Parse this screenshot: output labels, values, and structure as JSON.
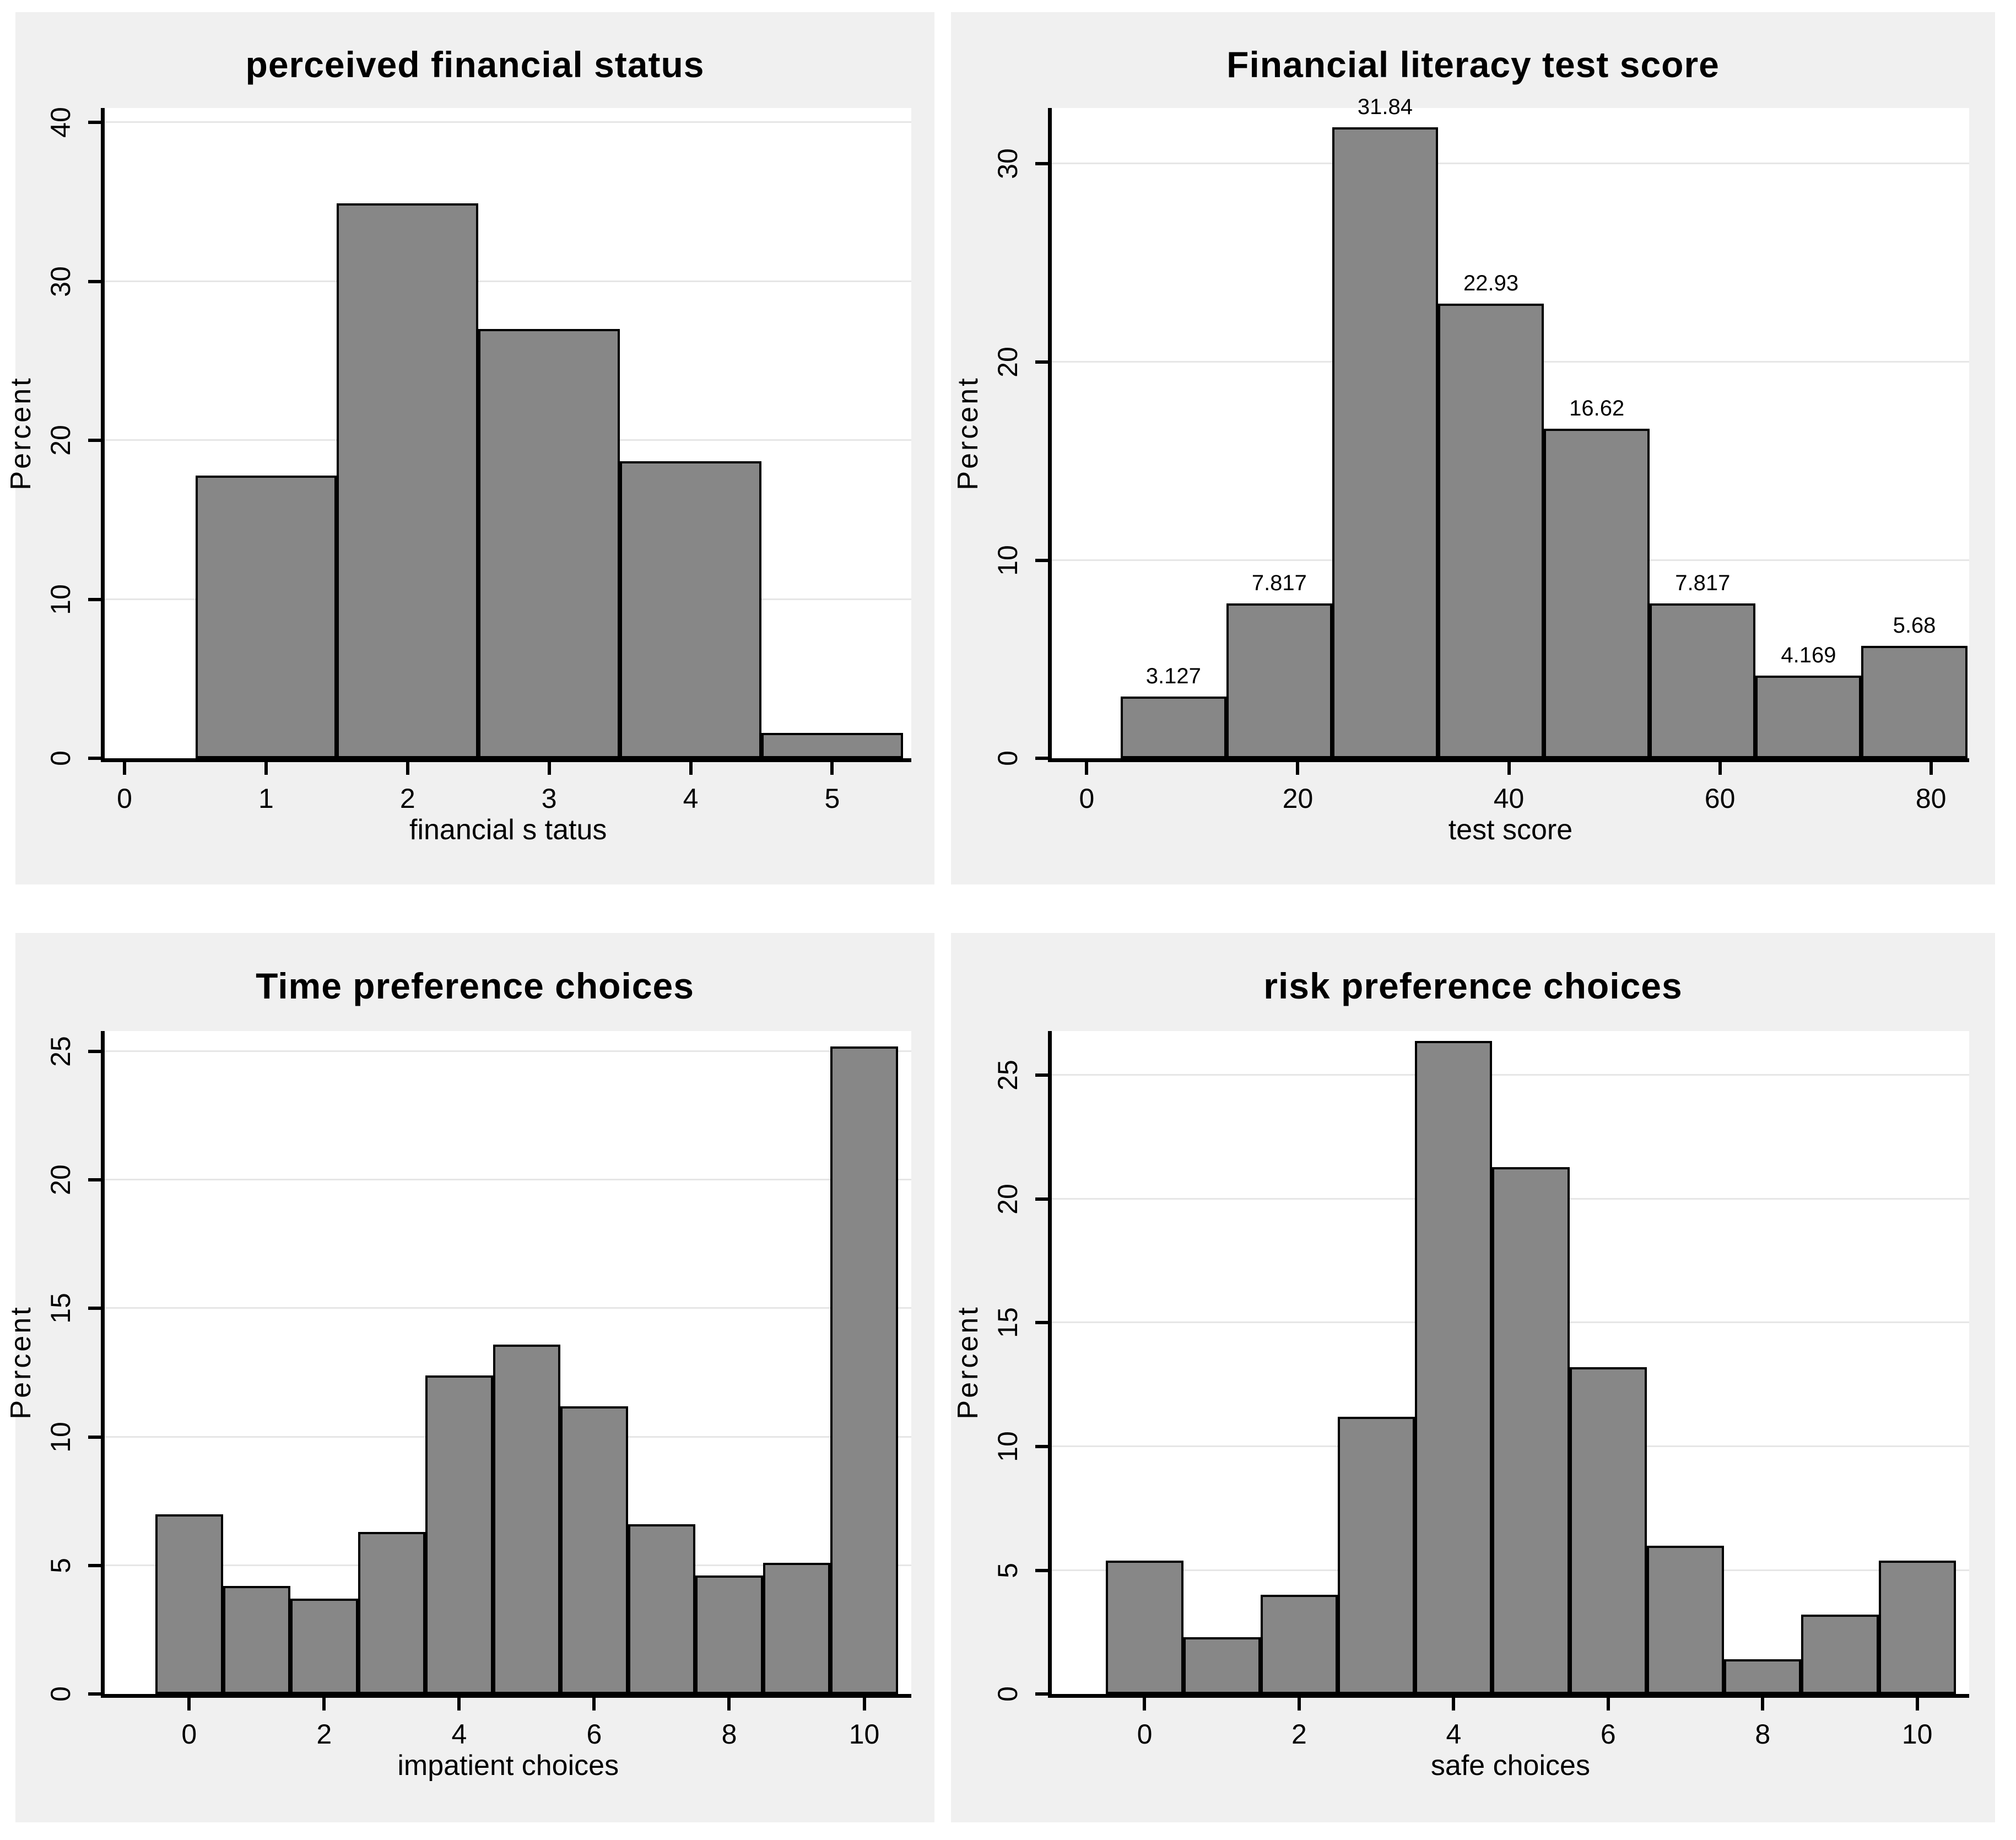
{
  "figure": {
    "background": "#ffffff",
    "panel_background": "#f0f0f0",
    "plot_background": "#ffffff",
    "bar_fill": "#878787",
    "bar_border": "#000000",
    "gridline_color": "#e6e6e6",
    "axis_color": "#000000",
    "text_color": "#000000"
  },
  "chart_data": [
    {
      "type": "bar",
      "kind": "histogram",
      "title": "perceived financial status",
      "xlabel": "financial s tatus",
      "ylabel": "Percent",
      "bin_start": 0.5,
      "bin_width": 1,
      "categories": [
        1,
        2,
        3,
        4,
        5
      ],
      "values": [
        17.8,
        34.9,
        27.0,
        18.7,
        1.6
      ],
      "xlim": [
        -0.14,
        5.56
      ],
      "ylim": [
        0,
        40.9
      ],
      "xticks": [
        0,
        1,
        2,
        3,
        4,
        5
      ],
      "yticks": [
        0,
        10,
        20,
        30,
        40
      ],
      "grid": true,
      "legend": "none"
    },
    {
      "type": "bar",
      "kind": "histogram",
      "title": "Financial literacy test score",
      "xlabel": "test score",
      "ylabel": "Percent",
      "bin_start": 3.2,
      "bin_width": 10.03,
      "values": [
        3.127,
        7.817,
        31.84,
        22.93,
        16.62,
        7.817,
        4.169,
        5.68
      ],
      "bar_labels": [
        "3.127",
        "7.817",
        "31.84",
        "22.93",
        "16.62",
        "7.817",
        "4.169",
        "5.68"
      ],
      "xlim": [
        -3.3,
        83.6
      ],
      "ylim": [
        0,
        32.8
      ],
      "xticks": [
        0,
        20,
        40,
        60,
        80
      ],
      "yticks": [
        0,
        10,
        20,
        30
      ],
      "grid": true,
      "legend": "none"
    },
    {
      "type": "bar",
      "kind": "histogram",
      "title": "Time preference choices",
      "xlabel": "impatient choices",
      "ylabel": "Percent",
      "bin_start": -0.5,
      "bin_width": 1,
      "categories": [
        0,
        1,
        2,
        3,
        4,
        5,
        6,
        7,
        8,
        9,
        10
      ],
      "values": [
        7.0,
        4.2,
        3.7,
        6.3,
        12.4,
        13.6,
        11.2,
        6.6,
        4.6,
        5.1,
        25.2
      ],
      "xlim": [
        -1.25,
        10.7
      ],
      "ylim": [
        0,
        25.8
      ],
      "xticks": [
        0,
        2,
        4,
        6,
        8,
        10
      ],
      "yticks": [
        0,
        5,
        10,
        15,
        20,
        25
      ],
      "grid": true,
      "legend": "none"
    },
    {
      "type": "bar",
      "kind": "histogram",
      "title": "risk preference choices",
      "xlabel": "safe choices",
      "ylabel": "Percent",
      "categories": [
        0,
        1,
        2,
        3,
        4,
        5,
        6,
        7,
        8,
        9,
        10
      ],
      "bin_start": -0.5,
      "bin_width": 1,
      "values": [
        5.4,
        2.3,
        4.0,
        11.2,
        26.4,
        21.3,
        13.2,
        6.0,
        1.4,
        3.2,
        5.4
      ],
      "xlim": [
        -1.2,
        10.67
      ],
      "ylim": [
        0,
        26.8
      ],
      "xticks": [
        0,
        2,
        4,
        6,
        8,
        10
      ],
      "yticks": [
        0,
        5,
        10,
        15,
        20,
        25
      ],
      "grid": true,
      "legend": "none"
    }
  ]
}
